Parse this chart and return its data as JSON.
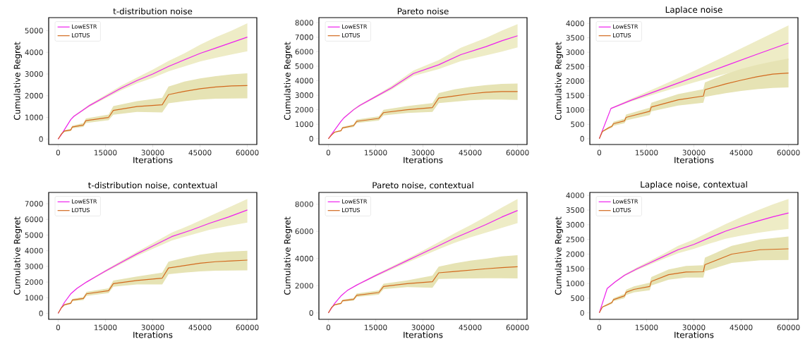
{
  "chart_data": [
    {
      "type": "line",
      "title": "t-distribution noise",
      "xlabel": "Iterations",
      "ylabel": "Cumulative Regret",
      "xlim": [
        -3000,
        63000
      ],
      "ylim": [
        -250,
        5600
      ],
      "xticks": [
        0,
        15000,
        30000,
        45000,
        60000
      ],
      "yticks": [
        0,
        1000,
        2000,
        3000,
        4000,
        5000
      ],
      "legend": "top left",
      "series": [
        {
          "name": "LowESTR",
          "color": "#ee1fee",
          "x": [
            0,
            1000,
            4000,
            5000,
            8000,
            10000,
            15000,
            20000,
            25000,
            30000,
            35000,
            40000,
            45000,
            50000,
            55000,
            60000
          ],
          "values": [
            0,
            200,
            900,
            1050,
            1350,
            1550,
            1950,
            2350,
            2700,
            3000,
            3350,
            3650,
            3950,
            4200,
            4450,
            4700
          ],
          "lower": [
            0,
            190,
            880,
            1020,
            1310,
            1500,
            1880,
            2250,
            2570,
            2820,
            3120,
            3350,
            3580,
            3750,
            3900,
            4050
          ],
          "upper": [
            0,
            210,
            920,
            1080,
            1390,
            1600,
            2030,
            2460,
            2840,
            3200,
            3600,
            3950,
            4350,
            4700,
            5000,
            5340
          ]
        },
        {
          "name": "LOTUS",
          "color": "#d2691e",
          "x": [
            0,
            1000,
            2000,
            4000,
            4500,
            8000,
            8800,
            16000,
            17500,
            25000,
            33000,
            35000,
            40000,
            45000,
            50000,
            55000,
            60000
          ],
          "values": [
            0,
            230,
            370,
            420,
            560,
            650,
            850,
            1000,
            1320,
            1500,
            1580,
            2050,
            2200,
            2320,
            2400,
            2450,
            2470
          ],
          "lower": [
            0,
            210,
            330,
            370,
            500,
            560,
            740,
            870,
            1120,
            1250,
            1230,
            1650,
            1750,
            1820,
            1860,
            1870,
            1880
          ],
          "upper": [
            0,
            250,
            410,
            470,
            620,
            740,
            950,
            1130,
            1520,
            1750,
            1900,
            2420,
            2650,
            2800,
            2900,
            2980,
            3030
          ]
        }
      ]
    },
    {
      "type": "line",
      "title": "Pareto noise",
      "xlabel": "Iterations",
      "ylabel": "Cumulative Regret",
      "xlim": [
        -3000,
        63000
      ],
      "ylim": [
        -400,
        8350
      ],
      "xticks": [
        0,
        15000,
        30000,
        45000,
        60000
      ],
      "yticks": [
        0,
        1000,
        2000,
        3000,
        4000,
        5000,
        6000,
        7000,
        8000
      ],
      "legend": "top left",
      "series": [
        {
          "name": "LowESTR",
          "color": "#ee1fee",
          "x": [
            0,
            1000,
            4000,
            5000,
            8000,
            10000,
            15000,
            20000,
            27000,
            35000,
            42000,
            50000,
            55000,
            60000
          ],
          "values": [
            0,
            300,
            1200,
            1450,
            2000,
            2300,
            2900,
            3500,
            4500,
            5100,
            5800,
            6350,
            6750,
            7100
          ],
          "lower": [
            0,
            290,
            1170,
            1410,
            1950,
            2240,
            2820,
            3380,
            4330,
            4800,
            5350,
            5750,
            6000,
            6300
          ],
          "upper": [
            0,
            310,
            1230,
            1490,
            2050,
            2360,
            2980,
            3630,
            4700,
            5420,
            6270,
            6950,
            7450,
            7900
          ]
        },
        {
          "name": "LOTUS",
          "color": "#d2691e",
          "x": [
            0,
            1000,
            2000,
            4000,
            4500,
            8000,
            9000,
            16000,
            17500,
            25000,
            33000,
            35000,
            40000,
            45000,
            50000,
            55000,
            60000
          ],
          "values": [
            0,
            250,
            450,
            550,
            750,
            900,
            1200,
            1400,
            1800,
            2000,
            2150,
            2800,
            2950,
            3100,
            3200,
            3250,
            3250
          ],
          "lower": [
            0,
            230,
            410,
            500,
            680,
            800,
            1080,
            1250,
            1600,
            1780,
            1850,
            2450,
            2550,
            2650,
            2700,
            2695,
            2680
          ],
          "upper": [
            0,
            270,
            490,
            600,
            820,
            1000,
            1320,
            1550,
            2000,
            2250,
            2450,
            3150,
            3400,
            3580,
            3700,
            3780,
            3800
          ]
        }
      ]
    },
    {
      "type": "line",
      "title": "Laplace noise",
      "xlabel": "Iterations",
      "ylabel": "Cumulative Regret",
      "xlim": [
        -3000,
        63000
      ],
      "ylim": [
        -200,
        4200
      ],
      "xticks": [
        0,
        15000,
        30000,
        45000,
        60000
      ],
      "yticks": [
        0,
        500,
        1000,
        1500,
        2000,
        2500,
        3000,
        3500,
        4000
      ],
      "legend": "top left",
      "series": [
        {
          "name": "LowESTR",
          "color": "#ee1fee",
          "x": [
            0,
            3700,
            10000,
            20000,
            30000,
            40000,
            50000,
            60000
          ],
          "values": [
            0,
            1050,
            1330,
            1730,
            2130,
            2530,
            2930,
            3320
          ],
          "lower": [
            0,
            1030,
            1290,
            1630,
            1950,
            2250,
            2500,
            2720
          ],
          "upper": [
            0,
            1070,
            1380,
            1860,
            2350,
            2870,
            3400,
            3930
          ]
        },
        {
          "name": "LOTUS",
          "color": "#d2691e",
          "x": [
            0,
            1000,
            3000,
            4000,
            4500,
            8000,
            8500,
            16000,
            16500,
            25000,
            33000,
            33500,
            40000,
            45000,
            50000,
            55000,
            60000
          ],
          "values": [
            0,
            250,
            380,
            430,
            520,
            620,
            740,
            950,
            1100,
            1350,
            1480,
            1700,
            1900,
            2030,
            2150,
            2240,
            2280
          ],
          "lower": [
            0,
            230,
            340,
            380,
            450,
            540,
            640,
            820,
            950,
            1150,
            1250,
            1450,
            1580,
            1660,
            1720,
            1760,
            1780
          ],
          "upper": [
            0,
            270,
            420,
            480,
            590,
            700,
            840,
            1080,
            1250,
            1550,
            1720,
            1950,
            2240,
            2420,
            2560,
            2680,
            2780
          ]
        }
      ]
    },
    {
      "type": "line",
      "title": "t-distribution noise, contextual",
      "xlabel": "Iterations",
      "ylabel": "Cumulative Regret",
      "xlim": [
        -3000,
        63000
      ],
      "ylim": [
        -380,
        7720
      ],
      "xticks": [
        0,
        15000,
        30000,
        45000,
        60000
      ],
      "yticks": [
        0,
        1000,
        2000,
        3000,
        4000,
        5000,
        6000,
        7000
      ],
      "legend": "top left",
      "series": [
        {
          "name": "LowESTR",
          "color": "#ee1fee",
          "x": [
            0,
            2000,
            4000,
            6000,
            9000,
            12000,
            15000,
            20000,
            25000,
            30000,
            36000,
            42000,
            48000,
            54000,
            60000
          ],
          "values": [
            0,
            700,
            1250,
            1600,
            2000,
            2350,
            2700,
            3250,
            3800,
            4300,
            4900,
            5300,
            5750,
            6150,
            6600
          ],
          "lower": [
            0,
            690,
            1230,
            1570,
            1960,
            2300,
            2630,
            3150,
            3670,
            4120,
            4650,
            5000,
            5330,
            5580,
            5800
          ],
          "upper": [
            0,
            710,
            1270,
            1630,
            2040,
            2400,
            2770,
            3350,
            3930,
            4480,
            5150,
            5650,
            6200,
            6750,
            7300
          ]
        },
        {
          "name": "LOTUS",
          "color": "#d2691e",
          "x": [
            0,
            1000,
            2000,
            4000,
            4500,
            8000,
            9000,
            16000,
            17500,
            25000,
            33000,
            35000,
            40000,
            45000,
            50000,
            55000,
            60000
          ],
          "values": [
            0,
            350,
            550,
            650,
            850,
            950,
            1250,
            1450,
            1900,
            2100,
            2250,
            2900,
            3050,
            3200,
            3300,
            3350,
            3400
          ],
          "lower": [
            0,
            320,
            500,
            590,
            770,
            850,
            1120,
            1300,
            1700,
            1850,
            1850,
            2500,
            2600,
            2680,
            2720,
            2740,
            2750
          ],
          "upper": [
            0,
            380,
            600,
            710,
            930,
            1050,
            1380,
            1600,
            2100,
            2350,
            2600,
            3300,
            3550,
            3750,
            3880,
            3950,
            4000
          ]
        }
      ]
    },
    {
      "type": "line",
      "title": "Pareto noise, contextual",
      "xlabel": "Iterations",
      "ylabel": "Cumulative Regret",
      "xlim": [
        -3000,
        63000
      ],
      "ylim": [
        -470,
        8860
      ],
      "xticks": [
        0,
        15000,
        30000,
        45000,
        60000
      ],
      "yticks": [
        0,
        2000,
        4000,
        6000,
        8000
      ],
      "legend": "top left",
      "series": [
        {
          "name": "LowESTR",
          "color": "#ee1fee",
          "x": [
            0,
            2000,
            4000,
            6000,
            9000,
            12000,
            15000,
            20000,
            25000,
            30000,
            35000,
            40000,
            45000,
            50000,
            55000,
            60000
          ],
          "values": [
            0,
            700,
            1250,
            1650,
            2050,
            2400,
            2750,
            3300,
            3850,
            4400,
            4950,
            5500,
            6000,
            6500,
            7050,
            7530
          ],
          "lower": [
            0,
            690,
            1230,
            1620,
            2000,
            2340,
            2670,
            3190,
            3700,
            4200,
            4690,
            5150,
            5550,
            5900,
            6250,
            6600
          ],
          "upper": [
            0,
            710,
            1270,
            1680,
            2100,
            2460,
            2830,
            3410,
            3990,
            4590,
            5200,
            5850,
            6450,
            7080,
            7750,
            8380
          ]
        },
        {
          "name": "LOTUS",
          "color": "#d2691e",
          "x": [
            0,
            1000,
            2000,
            4000,
            4500,
            8000,
            9000,
            16000,
            17500,
            25000,
            33000,
            35000,
            40000,
            45000,
            50000,
            55000,
            60000
          ],
          "values": [
            0,
            400,
            600,
            700,
            900,
            1000,
            1300,
            1500,
            1950,
            2150,
            2300,
            2950,
            3050,
            3150,
            3250,
            3330,
            3400
          ],
          "lower": [
            0,
            370,
            550,
            640,
            820,
            900,
            1170,
            1350,
            1750,
            1900,
            1850,
            2500,
            2520,
            2540,
            2550,
            2545,
            2530
          ],
          "upper": [
            0,
            430,
            650,
            760,
            980,
            1100,
            1430,
            1650,
            2150,
            2400,
            2750,
            3400,
            3650,
            3850,
            3990,
            4150,
            4250
          ]
        }
      ]
    },
    {
      "type": "line",
      "title": "Laplace noise, contextual",
      "xlabel": "Iterations",
      "ylabel": "Cumulative Regret",
      "xlim": [
        -3000,
        63000
      ],
      "ylim": [
        -220,
        4100
      ],
      "xticks": [
        0,
        15000,
        30000,
        45000,
        60000
      ],
      "yticks": [
        0,
        500,
        1000,
        1500,
        2000,
        2500,
        3000,
        3500,
        4000
      ],
      "legend": "top left",
      "series": [
        {
          "name": "LowESTR",
          "color": "#ee1fee",
          "x": [
            0,
            2500,
            5000,
            8000,
            12000,
            16000,
            20000,
            25000,
            30000,
            35000,
            40000,
            45000,
            50000,
            55000,
            60000
          ],
          "values": [
            0,
            830,
            1050,
            1280,
            1500,
            1700,
            1900,
            2150,
            2330,
            2560,
            2780,
            2960,
            3120,
            3270,
            3400
          ],
          "lower": [
            0,
            820,
            1030,
            1250,
            1460,
            1640,
            1820,
            2030,
            2180,
            2360,
            2520,
            2630,
            2720,
            2800,
            2860
          ],
          "upper": [
            0,
            840,
            1070,
            1310,
            1550,
            1770,
            1990,
            2280,
            2500,
            2760,
            3020,
            3260,
            3480,
            3690,
            3880
          ]
        },
        {
          "name": "LOTUS",
          "color": "#d2691e",
          "x": [
            0,
            1000,
            2000,
            4000,
            4500,
            8000,
            8500,
            11000,
            16000,
            16500,
            22000,
            27500,
            33000,
            33500,
            42000,
            51000,
            60000
          ],
          "values": [
            0,
            200,
            250,
            350,
            450,
            580,
            700,
            800,
            900,
            1070,
            1300,
            1390,
            1400,
            1640,
            2000,
            2150,
            2180
          ],
          "lower": [
            0,
            180,
            220,
            310,
            400,
            500,
            610,
            700,
            770,
            930,
            1130,
            1200,
            1200,
            1420,
            1700,
            1790,
            1800
          ],
          "upper": [
            0,
            220,
            280,
            390,
            500,
            650,
            790,
            900,
            1030,
            1220,
            1480,
            1600,
            1620,
            1880,
            2280,
            2500,
            2600
          ]
        }
      ]
    }
  ]
}
